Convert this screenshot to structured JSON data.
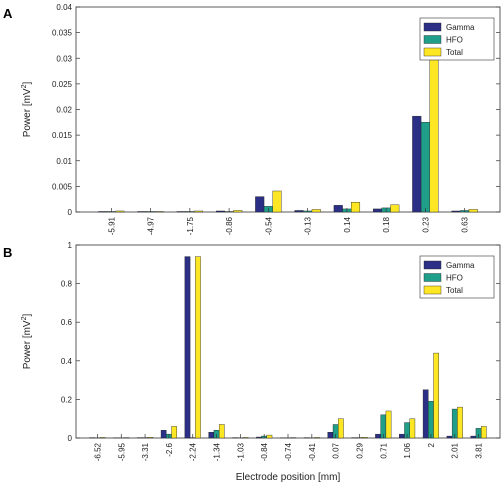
{
  "chart_data": [
    {
      "type": "bar",
      "panel_label": "A",
      "ylabel": "Power [mV",
      "ylabel_sup": "2",
      "ylabel_end": "]",
      "xlabel": "",
      "ylim": [
        0,
        0.04
      ],
      "yticks": [
        "0",
        "0.005",
        "0.01",
        "0.015",
        "0.02",
        "0.025",
        "0.03",
        "0.035",
        "0.04"
      ],
      "categories": [
        "-5.91",
        "-4.97",
        "-1.75",
        "-0.86",
        "-0.54",
        "-0.13",
        "0.14",
        "0.18",
        "0.23",
        "0.63"
      ],
      "series": [
        {
          "name": "Gamma",
          "color": "#2b2f85",
          "values": [
            0.0001,
            0.0001,
            0.0001,
            0.0002,
            0.003,
            0.0003,
            0.0013,
            0.0006,
            0.0187,
            0.0002
          ]
        },
        {
          "name": "HFO",
          "color": "#1f9e89",
          "values": [
            0.0001,
            0.0001,
            0.0001,
            0.0001,
            0.0011,
            0.0002,
            0.0006,
            0.0008,
            0.0175,
            0.0003
          ]
        },
        {
          "name": "Total",
          "color": "#fde725",
          "values": [
            0.0002,
            0.0001,
            0.0002,
            0.0003,
            0.0041,
            0.0005,
            0.0019,
            0.0014,
            0.0363,
            0.0005
          ]
        }
      ],
      "legend_position": "top-right"
    },
    {
      "type": "bar",
      "panel_label": "B",
      "ylabel": "Power [mV",
      "ylabel_sup": "2",
      "ylabel_end": "]",
      "xlabel": "Electrode position [mm]",
      "ylim": [
        0,
        1
      ],
      "yticks": [
        "0",
        "0.2",
        "0.4",
        "0.6",
        "0.8",
        "1"
      ],
      "categories": [
        "-6.52",
        "-5.95",
        "-3.31",
        "-2.6",
        "-2.24",
        "-1.34",
        "-1.03",
        "-0.84",
        "-0.74",
        "-0.41",
        "0.07",
        "0.29",
        "0.71",
        "1.06",
        "2",
        "2.01",
        "3.81"
      ],
      "series": [
        {
          "name": "Gamma",
          "color": "#2b2f85",
          "values": [
            0.002,
            0.001,
            0.002,
            0.04,
            0.94,
            0.03,
            0.002,
            0.005,
            0.001,
            0.002,
            0.03,
            0.002,
            0.02,
            0.02,
            0.25,
            0.01,
            0.01
          ]
        },
        {
          "name": "HFO",
          "color": "#1f9e89",
          "values": [
            0.001,
            0.001,
            0.002,
            0.02,
            0.002,
            0.04,
            0.001,
            0.01,
            0.001,
            0.001,
            0.07,
            0.002,
            0.12,
            0.08,
            0.19,
            0.15,
            0.05
          ]
        },
        {
          "name": "Total",
          "color": "#fde725",
          "values": [
            0.003,
            0.002,
            0.004,
            0.06,
            0.94,
            0.07,
            0.003,
            0.015,
            0.002,
            0.003,
            0.1,
            0.004,
            0.14,
            0.1,
            0.44,
            0.16,
            0.06
          ]
        }
      ],
      "legend_position": "top-right"
    }
  ]
}
